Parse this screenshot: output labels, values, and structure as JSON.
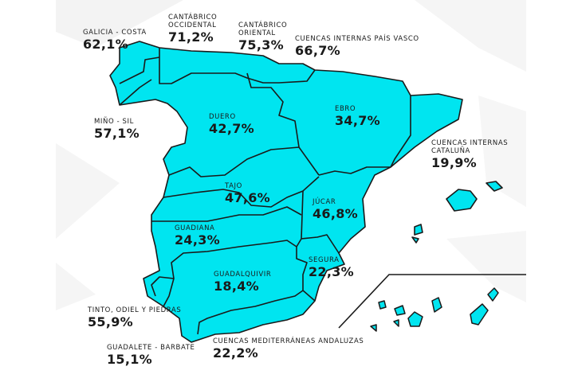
{
  "colors": {
    "land": "#00e5f0",
    "border": "#1a1a1a",
    "background": "#ffffff",
    "decor": "#f1f1f1"
  },
  "basins": [
    {
      "id": "galicia-costa",
      "name": "GALICIA - COSTA",
      "value": "62,1%"
    },
    {
      "id": "cantabrico-occidental",
      "name": "CANTÁBRICO\nOCCIDENTAL",
      "value": "71,2%"
    },
    {
      "id": "cantabrico-oriental",
      "name": "CANTÁBRICO\nORIENTAL",
      "value": "75,3%"
    },
    {
      "id": "cuencas-internas-pais-vasco",
      "name": "CUENCAS INTERNAS PAÍS VASCO",
      "value": "66,7%"
    },
    {
      "id": "mino-sil",
      "name": "MIÑO - SIL",
      "value": "57,1%"
    },
    {
      "id": "duero",
      "name": "DUERO",
      "value": "42,7%"
    },
    {
      "id": "ebro",
      "name": "EBRO",
      "value": "34,7%"
    },
    {
      "id": "cuencas-internas-cataluna",
      "name": "CUENCAS INTERNAS\nCATALUÑA",
      "value": "19,9%"
    },
    {
      "id": "tajo",
      "name": "TAJO",
      "value": "47,6%"
    },
    {
      "id": "jucar",
      "name": "JÚCAR",
      "value": "46,8%"
    },
    {
      "id": "guadiana",
      "name": "GUADIANA",
      "value": "24,3%"
    },
    {
      "id": "segura",
      "name": "SEGURA",
      "value": "22,3%"
    },
    {
      "id": "guadalquivir",
      "name": "GUADALQUIVIR",
      "value": "18,4%"
    },
    {
      "id": "tinto-odiel-piedras",
      "name": "TINTO, ODIEL Y PIEDRAS",
      "value": "55,9%"
    },
    {
      "id": "guadalete-barbate",
      "name": "GUADALETE - BARBATE",
      "value": "15,1%"
    },
    {
      "id": "cuencas-mediterraneas-andaluzas",
      "name": "CUENCAS MEDITERRÁNEAS ANDALUZAS",
      "value": "22,2%"
    }
  ]
}
